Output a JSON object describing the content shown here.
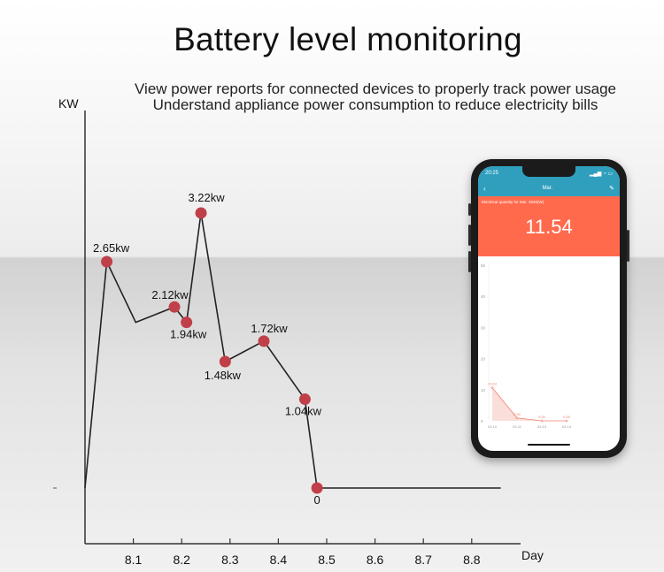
{
  "title": "Battery level monitoring",
  "subtitle": "View power reports for connected devices to properly track power usage Understand appliance power consumption to reduce electricity bills",
  "chart_data": {
    "type": "line",
    "xlabel": "Day",
    "ylabel": "KW",
    "x_ticks": [
      "8.1",
      "8.2",
      "8.3",
      "8.4",
      "8.5",
      "8.6",
      "8.7",
      "8.8"
    ],
    "points": [
      {
        "x": 8.0,
        "y": 0,
        "label": ""
      },
      {
        "x": 8.045,
        "y": 2.65,
        "label": "2.65kw"
      },
      {
        "x": 8.105,
        "y": 1.94,
        "label": ""
      },
      {
        "x": 8.185,
        "y": 2.12,
        "label": "2.12kw"
      },
      {
        "x": 8.21,
        "y": 1.94,
        "label": "1.94kw"
      },
      {
        "x": 8.24,
        "y": 3.22,
        "label": "3.22kw"
      },
      {
        "x": 8.29,
        "y": 1.48,
        "label": "1.48kw"
      },
      {
        "x": 8.37,
        "y": 1.72,
        "label": "1.72kw"
      },
      {
        "x": 8.455,
        "y": 1.04,
        "label": "1.04kw"
      },
      {
        "x": 8.48,
        "y": 0,
        "label": "0"
      },
      {
        "x": 8.86,
        "y": 0,
        "label": ""
      }
    ],
    "markers": [
      1,
      3,
      4,
      5,
      6,
      7,
      8,
      9
    ],
    "line_color": "#222222",
    "marker_color": "#c0404a"
  },
  "phone": {
    "status_time": "20:25",
    "nav_title": "Mar.",
    "caption": "Electrical quantity for Mar. 2020(W)",
    "value": "11.54",
    "mini_chart": {
      "y_ticks": [
        "50",
        "40",
        "30",
        "20",
        "10",
        "0"
      ],
      "x_labels": [
        "03-10",
        "03-11",
        "03-13",
        "03-14"
      ],
      "point_labels": [
        "10.64",
        "0.90",
        "0.00",
        "0.00"
      ],
      "values": [
        10.64,
        0.9,
        0,
        0
      ],
      "color": "#f08070"
    }
  }
}
